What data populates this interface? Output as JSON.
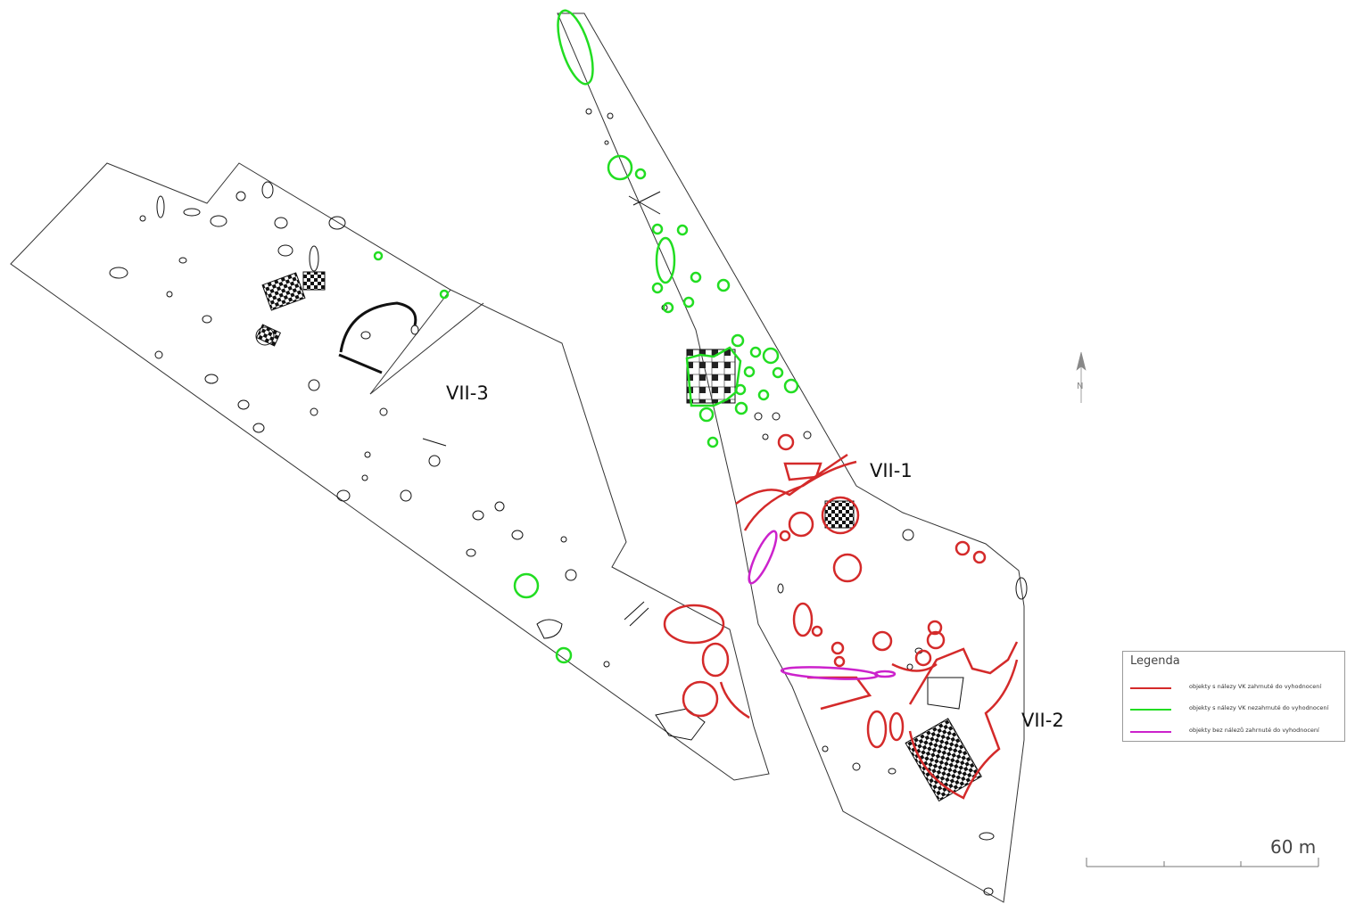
{
  "areas": {
    "vii3": "VII-3",
    "vii1": "VII-1",
    "vii2": "VII-2"
  },
  "north_arrow": {
    "letter": "N"
  },
  "legend": {
    "title": "Legenda",
    "items": [
      {
        "color": "#d42a2a",
        "label": "objekty s nálezy VK zahrnuté do vyhodnocení"
      },
      {
        "color": "#22dd22",
        "label": "objekty s nálezy VK nezahrnuté do vyhodnocení"
      },
      {
        "color": "#cc22cc",
        "label": "objekty bez nálezů zahrnuté do vyhodnocení"
      }
    ]
  },
  "scale_bar": {
    "label": "60 m"
  }
}
